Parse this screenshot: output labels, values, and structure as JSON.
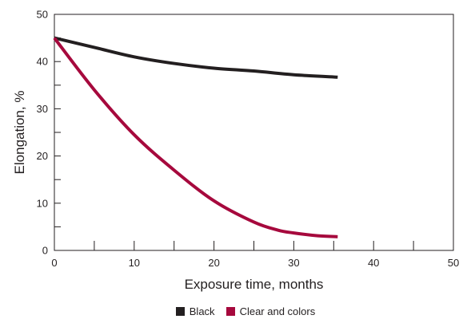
{
  "chart_data": {
    "type": "line",
    "xlabel": "Exposure time, months",
    "ylabel": "Elongation, %",
    "xlim": [
      0,
      50
    ],
    "ylim": [
      0,
      50
    ],
    "xticks": [
      0,
      10,
      20,
      30,
      40,
      50
    ],
    "yticks": [
      0,
      10,
      20,
      30,
      40,
      50
    ],
    "grid": false,
    "legend_position": "bottom",
    "series": [
      {
        "name": "Black",
        "color": "#231f20",
        "x": [
          0,
          5,
          10,
          15,
          20,
          25,
          30,
          35.5
        ],
        "y": [
          45,
          43,
          41,
          39.6,
          38.6,
          38,
          37.2,
          36.7
        ]
      },
      {
        "name": "Clear and colors",
        "color": "#a6093d",
        "x": [
          0,
          5,
          10,
          15,
          20,
          25,
          28,
          30,
          33,
          35.5
        ],
        "y": [
          45,
          34,
          24.5,
          17,
          10.5,
          6,
          4.3,
          3.7,
          3.1,
          2.9
        ]
      }
    ]
  }
}
